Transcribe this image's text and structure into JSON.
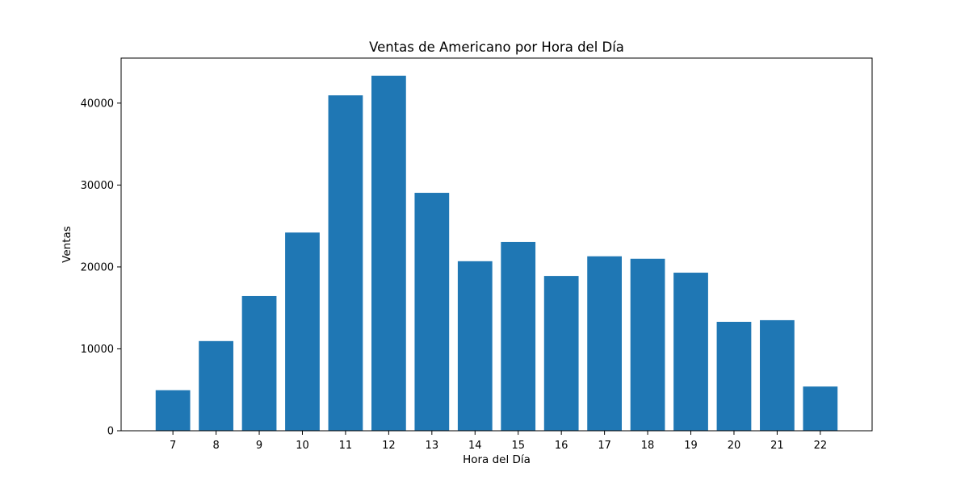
{
  "chart_data": {
    "type": "bar",
    "title": "Ventas de Americano por Hora del Día",
    "xlabel": "Hora del Día",
    "ylabel": "Ventas",
    "categories": [
      "7",
      "8",
      "9",
      "10",
      "11",
      "12",
      "13",
      "14",
      "15",
      "16",
      "17",
      "18",
      "19",
      "20",
      "21",
      "22"
    ],
    "values": [
      4950,
      10950,
      16450,
      24200,
      40950,
      43350,
      29050,
      20700,
      23050,
      18900,
      21300,
      21000,
      19300,
      13300,
      13500,
      5400
    ],
    "yticks": [
      0,
      10000,
      20000,
      30000,
      40000
    ],
    "ylim": [
      0,
      45500
    ],
    "grid": false,
    "legend": "none",
    "bar_color": "#1f77b4"
  }
}
